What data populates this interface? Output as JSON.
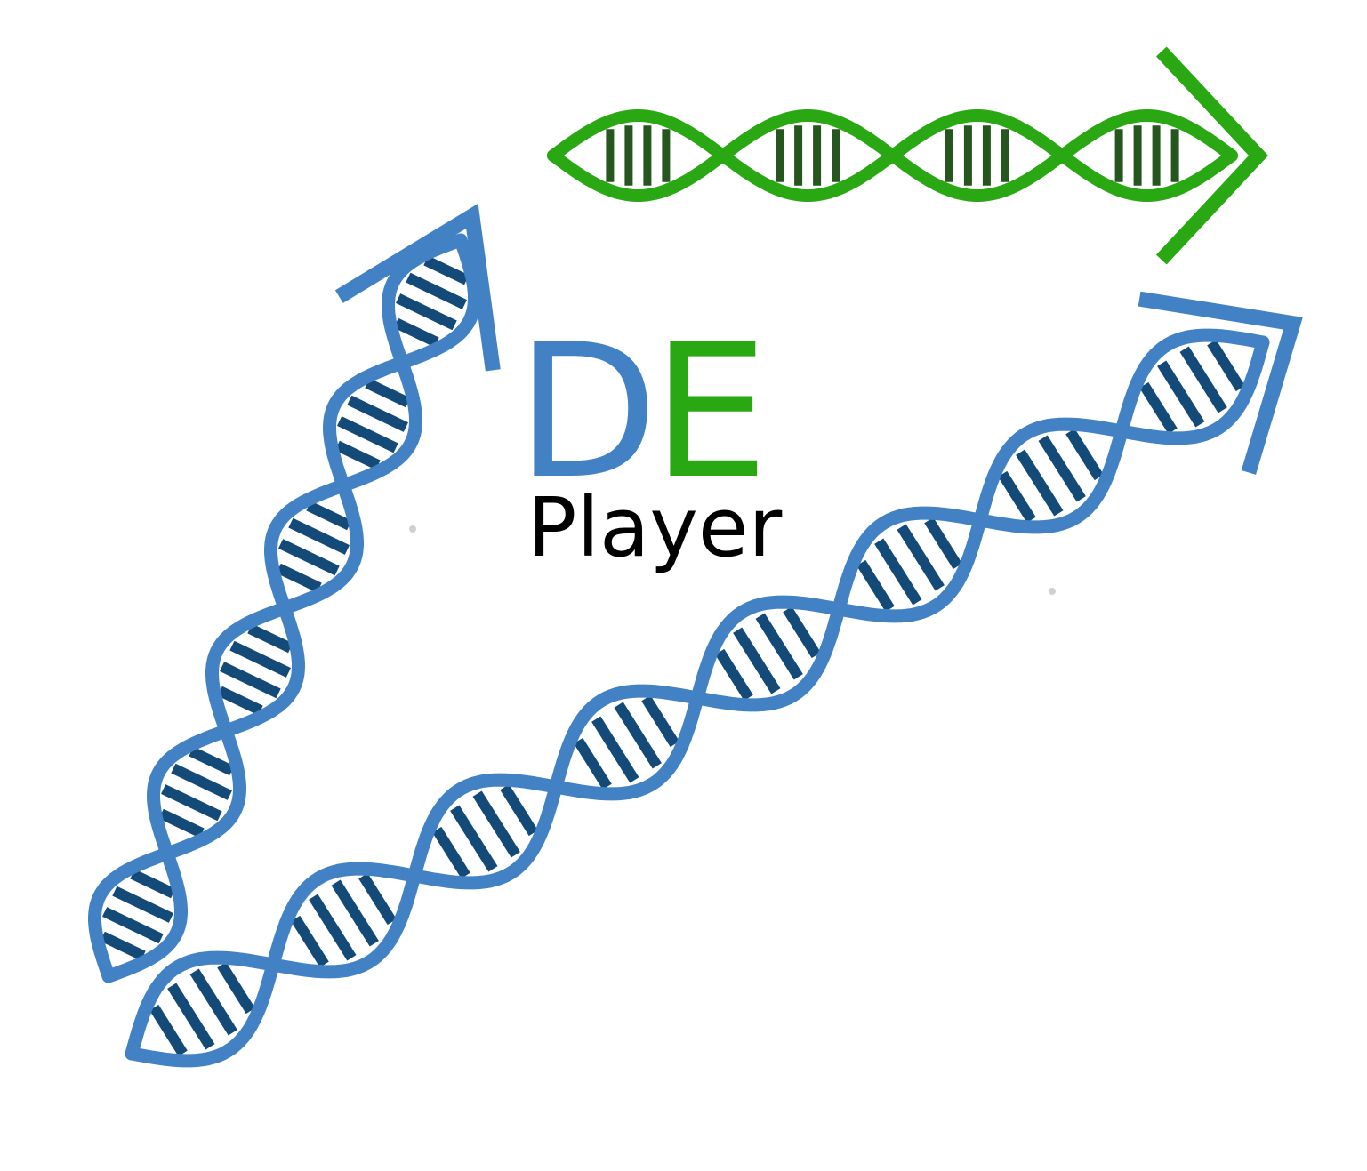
{
  "logo": {
    "letter_d": "D",
    "letter_e": "E",
    "subtitle": "Player"
  },
  "colors": {
    "blue_strand": "#4282c4",
    "blue_rungs": "#134a78",
    "green_strand": "#2aa814",
    "green_rungs": "#24561e",
    "letter_d": "#4282c4",
    "letter_e": "#2aa814",
    "subtitle": "#000000",
    "background": "#ffffff"
  },
  "icons": [
    "dna-helix-arrow-icon",
    "dna-helix-arrow-icon",
    "dna-helix-arrow-icon"
  ]
}
